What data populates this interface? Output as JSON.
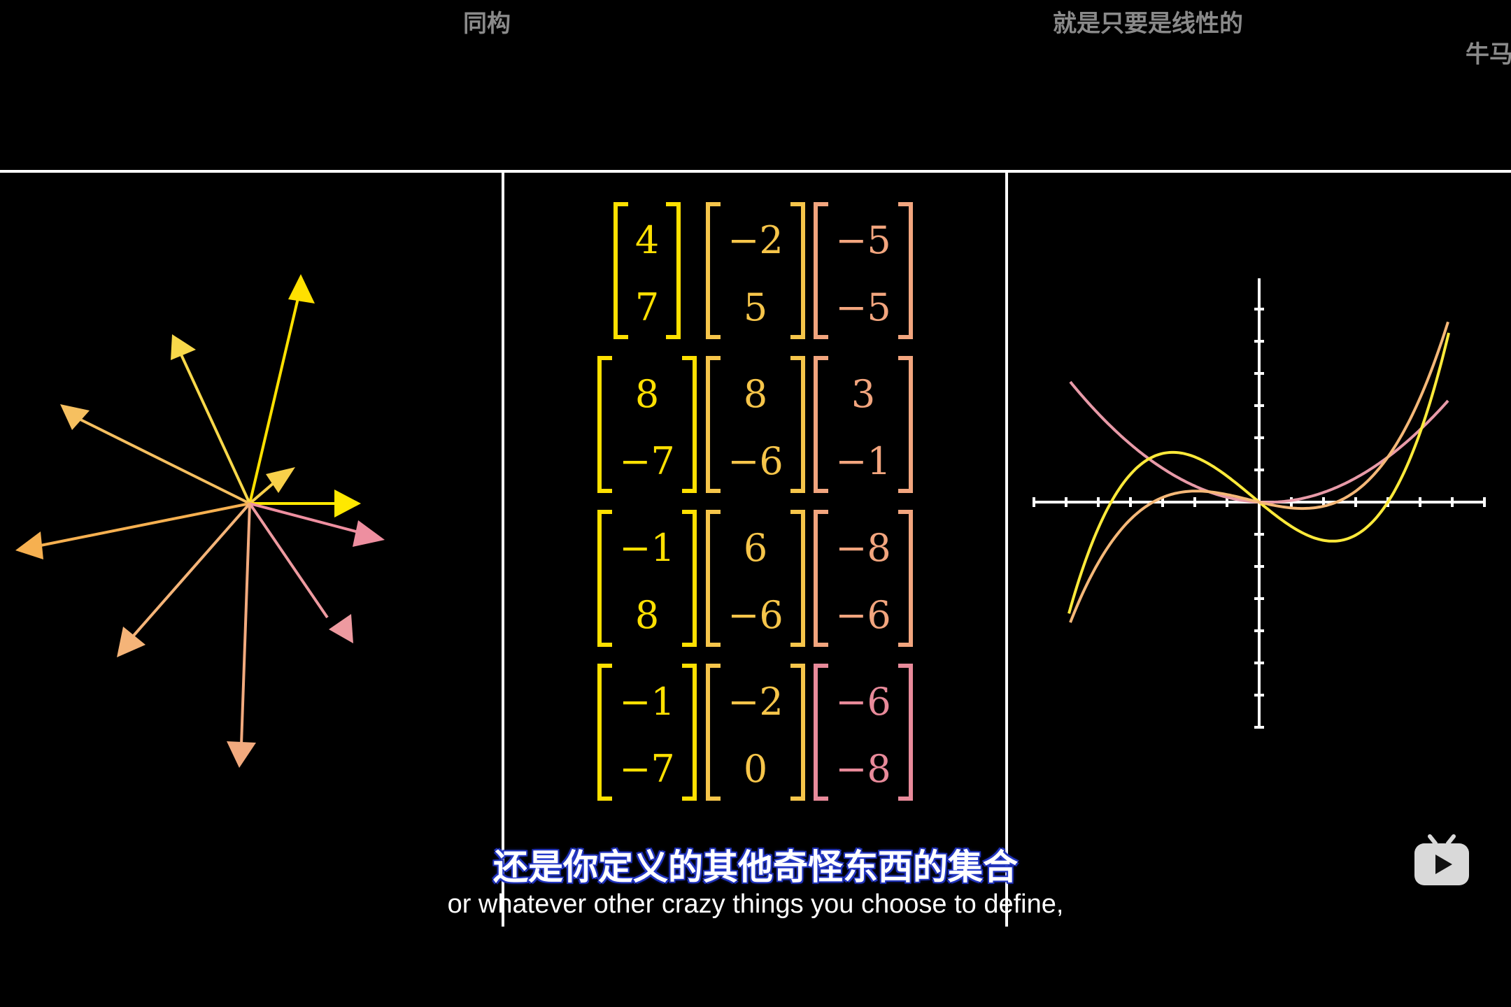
{
  "top_labels": {
    "left": "同构",
    "center_right": "就是只要是线性的",
    "far_right": "牛马"
  },
  "matrix_panel": {
    "vectors": [
      [
        "4",
        "7"
      ],
      [
        "−2",
        "5"
      ],
      [
        "−5",
        "−5"
      ],
      [
        "8",
        "−7"
      ],
      [
        "8",
        "−6"
      ],
      [
        "3",
        "−1"
      ],
      [
        "−1",
        "8"
      ],
      [
        "6",
        "−6"
      ],
      [
        "−8",
        "−6"
      ],
      [
        "−1",
        "−7"
      ],
      [
        "−2",
        "0"
      ],
      [
        "−6",
        "−8"
      ]
    ]
  },
  "subtitle": {
    "chinese": "还是你定义的其他奇怪东西的集合",
    "english": "or whatever other crazy things you choose to define,"
  },
  "icons": {
    "player": "bilibili-tv-icon"
  },
  "colors": {
    "yellow": "#FFE800",
    "gold": "#F6C54A",
    "orange": "#F6B26B",
    "peach": "#F2A57E",
    "pink": "#E88A9A"
  }
}
